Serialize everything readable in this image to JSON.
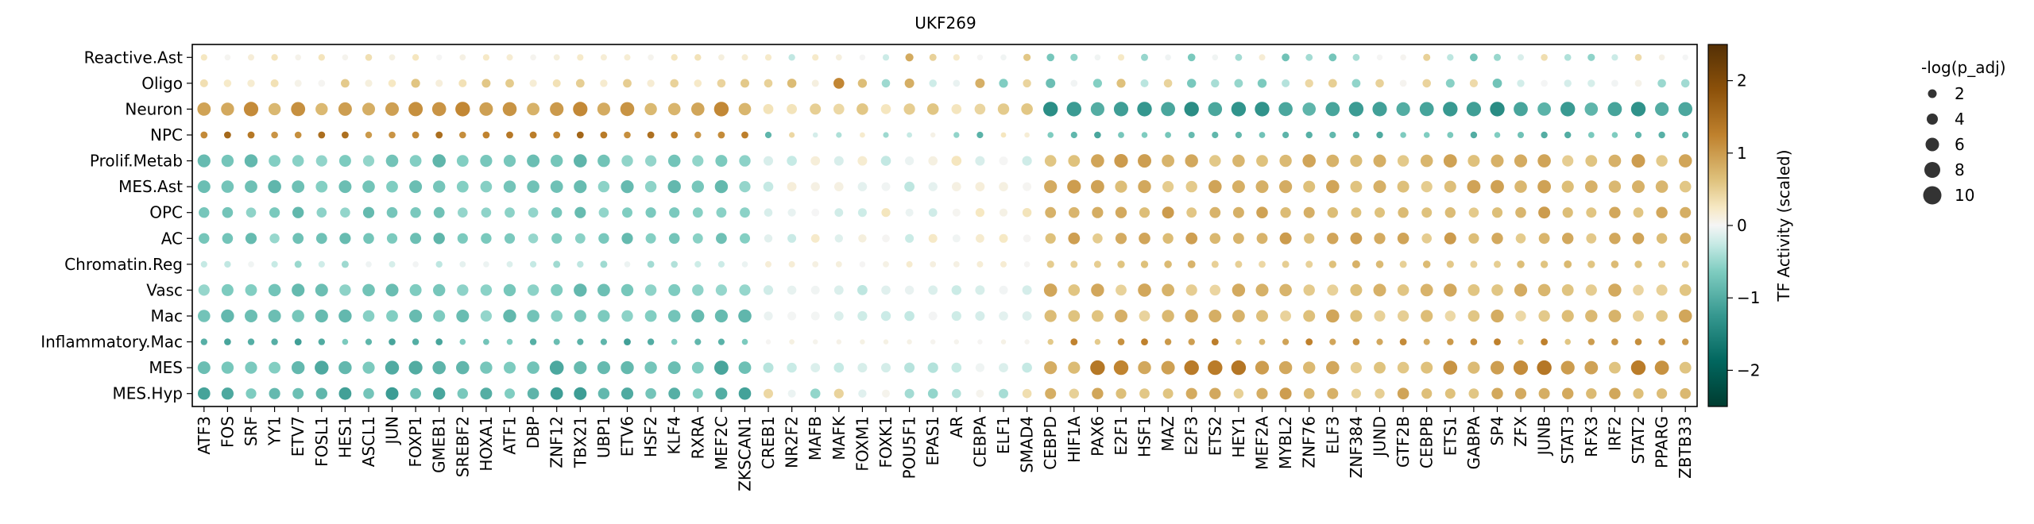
{
  "chart_data": {
    "type": "dotplot",
    "title": "UKF269",
    "rows": [
      "Reactive.Ast",
      "Oligo",
      "Neuron",
      "NPC",
      "Prolif.Metab",
      "MES.Ast",
      "OPC",
      "AC",
      "Chromatin.Reg",
      "Vasc",
      "Mac",
      "Inflammatory.Mac",
      "MES",
      "MES.Hyp"
    ],
    "columns": [
      "ATF3",
      "FOS",
      "SRF",
      "YY1",
      "ETV7",
      "FOSL1",
      "HES1",
      "ASCL1",
      "JUN",
      "FOXP1",
      "GMEB1",
      "SREBF2",
      "HOXA1",
      "ATF1",
      "DBP",
      "ZNF12",
      "TBX21",
      "UBP1",
      "ETV6",
      "HSF2",
      "KLF4",
      "RXRA",
      "MEF2C",
      "ZKSCAN1",
      "CREB1",
      "NR2F2",
      "MAFB",
      "MAFK",
      "FOXM1",
      "FOXK1",
      "POU5F1",
      "EPAS1",
      "AR",
      "CEBPA",
      "ELF1",
      "SMAD4",
      "CEBPD",
      "HIF1A",
      "PAX6",
      "E2F1",
      "HSF1",
      "MAZ",
      "E2F3",
      "ETS2",
      "HEY1",
      "MEF2A",
      "MYBL2",
      "ZNF76",
      "ELF3",
      "ZNF384",
      "JUND",
      "GTF2B",
      "CEBPB",
      "ETS1",
      "GABPA",
      "SP4",
      "ZFX",
      "JUNB",
      "STAT3",
      "RFX3",
      "IRF2",
      "STAT2",
      "PPARG",
      "ZBTB33"
    ],
    "row_profiles": {
      "Reactive.Ast": {
        "base": 0.1,
        "size": 3
      },
      "Oligo": {
        "base": 0.3,
        "size": 4
      },
      "Neuron": {
        "base": 0.2,
        "size": 6
      },
      "NPC": {
        "base": 0.5,
        "size": 2
      },
      "Prolif.Metab": {
        "base": 0.0,
        "size": 6
      },
      "MES.Ast": {
        "base": 0.0,
        "size": 6
      },
      "OPC": {
        "base": 0.0,
        "size": 5
      },
      "AC": {
        "base": 0.0,
        "size": 5
      },
      "Chromatin.Reg": {
        "base": 0.0,
        "size": 3
      },
      "Vasc": {
        "base": 0.0,
        "size": 6
      },
      "Mac": {
        "base": 0.0,
        "size": 6
      },
      "Inflammatory.Mac": {
        "base": 0.0,
        "size": 2
      },
      "MES": {
        "base": 0.0,
        "size": 6
      },
      "MES.Hyp": {
        "base": 0.0,
        "size": 5
      }
    },
    "column_groups": {
      "left": [
        "ATF3",
        "FOS",
        "SRF",
        "YY1",
        "ETV7",
        "FOSL1",
        "HES1",
        "ASCL1",
        "JUN",
        "FOXP1",
        "GMEB1",
        "SREBF2",
        "HOXA1",
        "ATF1",
        "DBP",
        "ZNF12",
        "TBX21",
        "UBP1",
        "ETV6",
        "HSF2",
        "KLF4",
        "RXRA",
        "MEF2C",
        "ZKSCAN1"
      ],
      "middle": [
        "CREB1",
        "NR2F2",
        "MAFB",
        "MAFK",
        "FOXM1",
        "FOXK1",
        "POU5F1",
        "EPAS1",
        "AR",
        "CEBPA",
        "ELF1",
        "SMAD4"
      ],
      "right": [
        "CEBPD",
        "HIF1A",
        "PAX6",
        "E2F1",
        "HSF1",
        "MAZ",
        "E2F3",
        "ETS2",
        "HEY1",
        "MEF2A",
        "MYBL2",
        "ZNF76",
        "ELF3",
        "ZNF384",
        "JUND",
        "GTF2B",
        "CEBPB",
        "ETS1",
        "GABPA",
        "SP4",
        "ZFX",
        "JUNB",
        "STAT3",
        "RFX3",
        "IRF2",
        "STAT2",
        "PPARG",
        "ZBTB33"
      ]
    },
    "colorbar": {
      "label": "TF Activity (scaled)",
      "range": [
        -2.5,
        2.5
      ],
      "ticks": [
        -2,
        -1,
        0,
        1,
        2
      ],
      "tick_labels": [
        "−2",
        "−1",
        "0",
        "1",
        "2"
      ],
      "colormap": "BrBG_r",
      "stops": [
        "#003c30",
        "#35978f",
        "#80cdc1",
        "#c7eae5",
        "#f5f5f5",
        "#f6e8c3",
        "#dfc27d",
        "#bf812d",
        "#543005"
      ]
    },
    "size_legend": {
      "title": "-log(p_adj)",
      "values": [
        2,
        4,
        6,
        8,
        10
      ],
      "labels": [
        "2",
        "4",
        "6",
        "8",
        "10"
      ],
      "placement": "right"
    }
  }
}
